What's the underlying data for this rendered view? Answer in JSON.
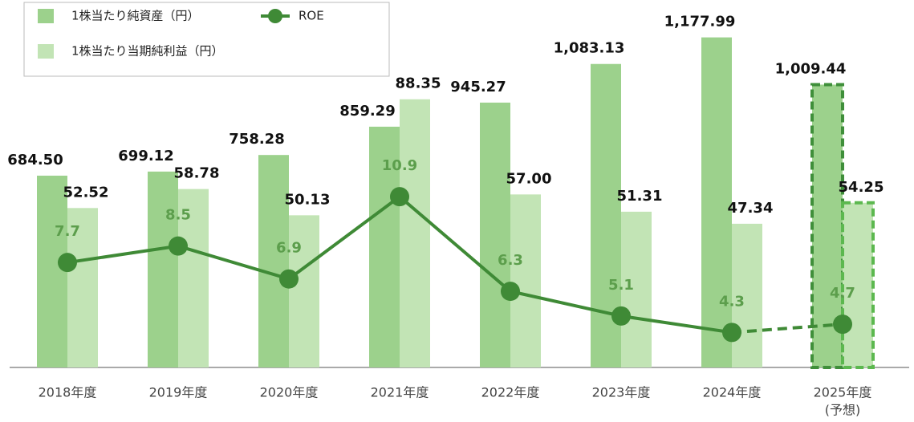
{
  "chart_data": {
    "type": "bar_line",
    "categories": [
      "2018年度",
      "2019年度",
      "2020年度",
      "2021年度",
      "2022年度",
      "2023年度",
      "2024年度",
      [
        "2025年度",
        "(予想)"
      ]
    ],
    "series": [
      {
        "name": "1株当たり純資産（円）",
        "type": "bar",
        "axis": "y",
        "color": "#9cd18c",
        "values": [
          684.5,
          699.12,
          758.28,
          859.29,
          945.27,
          1083.13,
          1177.99,
          1009.44
        ],
        "value_labels": [
          "684.50",
          "699.12",
          "758.28",
          "859.29",
          "945.27",
          "1,083.13",
          "1,177.99",
          "1,009.44"
        ]
      },
      {
        "name": "1株当たり当期純利益（円）",
        "type": "bar",
        "axis": "y2",
        "color": "#c2e4b5",
        "values": [
          52.52,
          58.78,
          50.13,
          88.35,
          57.0,
          51.31,
          47.34,
          54.25
        ],
        "value_labels": [
          "52.52",
          "58.78",
          "50.13",
          "88.35",
          "57.00",
          "51.31",
          "47.34",
          "54.25"
        ]
      },
      {
        "name": "ROE",
        "type": "line",
        "axis": "y3",
        "color": "#3f8a36",
        "label_color": "#5c9e4c",
        "values": [
          7.7,
          8.5,
          6.9,
          10.9,
          6.3,
          5.1,
          4.3,
          4.7
        ]
      }
    ],
    "dashed": [
      false,
      false,
      false,
      false,
      false,
      false,
      false,
      true
    ],
    "ylim": [
      0,
      1300
    ],
    "y2lim": [
      0,
      120
    ],
    "y3lim": [
      2.6,
      20.3
    ],
    "legend": "top-left"
  }
}
